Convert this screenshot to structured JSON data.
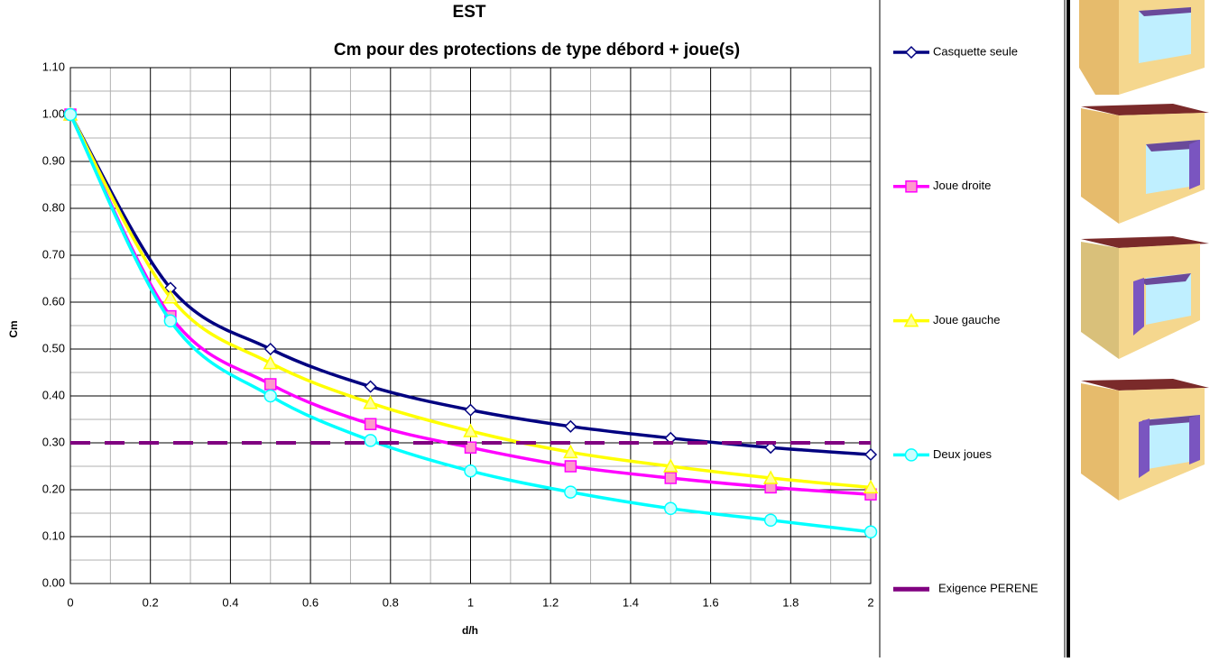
{
  "chart_data": {
    "type": "line",
    "title": "EST",
    "subtitle": "Cm pour des protections de type débord + joue(s)",
    "x_label": "d/h",
    "y_label": "Cm",
    "x": [
      0,
      0.25,
      0.5,
      0.75,
      1,
      1.25,
      1.5,
      1.75,
      2
    ],
    "series": [
      {
        "name": "Casquette seule",
        "color": "#000080",
        "marker": "diamond",
        "marker_fill": "#ffffff",
        "values": [
          1.0,
          0.63,
          0.5,
          0.42,
          0.37,
          0.335,
          0.31,
          0.29,
          0.275
        ]
      },
      {
        "name": "Joue droite",
        "color": "#ff00ff",
        "marker": "square",
        "marker_fill": "#ff99cc",
        "values": [
          1.0,
          0.57,
          0.425,
          0.34,
          0.29,
          0.25,
          0.225,
          0.205,
          0.19
        ]
      },
      {
        "name": "Joue gauche",
        "color": "#ffff00",
        "marker": "triangle",
        "marker_fill": "#ffff99",
        "values": [
          1.0,
          0.61,
          0.47,
          0.385,
          0.325,
          0.28,
          0.25,
          0.225,
          0.205
        ]
      },
      {
        "name": "Deux joues",
        "color": "#00ffff",
        "marker": "circle",
        "marker_fill": "#ccffff",
        "values": [
          1.0,
          0.56,
          0.4,
          0.305,
          0.24,
          0.195,
          0.16,
          0.135,
          0.11
        ]
      },
      {
        "name": "Exigence PERENE",
        "color": "#800080",
        "marker": "none",
        "dashed": true,
        "values": [
          0.3,
          0.3,
          0.3,
          0.3,
          0.3,
          0.3,
          0.3,
          0.3,
          0.3
        ]
      }
    ],
    "xlim": [
      0,
      2
    ],
    "ylim": [
      0,
      1.1
    ],
    "xticks": [
      0,
      0.2,
      0.4,
      0.6,
      0.8,
      1,
      1.2,
      1.4,
      1.6,
      1.8,
      2
    ],
    "yticks": [
      {
        "value": 0,
        "label": "0.00"
      },
      {
        "value": 0.1,
        "label": "0.10"
      },
      {
        "value": 0.2,
        "label": "0.20"
      },
      {
        "value": 0.3,
        "label": "0.30"
      },
      {
        "value": 0.4,
        "label": "0.40"
      },
      {
        "value": 0.5,
        "label": "0.50"
      },
      {
        "value": 0.6,
        "label": "0.60"
      },
      {
        "value": 0.7,
        "label": "0.70"
      },
      {
        "value": 0.8,
        "label": "0.80"
      },
      {
        "value": 0.9,
        "label": "0.90"
      },
      {
        "value": 1,
        "label": "1.00"
      },
      {
        "value": 1.1,
        "label": "1.10"
      }
    ],
    "x_minor_ticks": [
      0.1,
      0.3,
      0.5,
      0.7,
      0.9,
      1.1,
      1.3,
      1.5,
      1.7,
      1.9
    ],
    "y_minor_ticks": [
      0.05,
      0.15,
      0.25,
      0.35,
      0.45,
      0.55,
      0.65,
      0.75,
      0.85,
      0.95,
      1.05
    ],
    "grid": true,
    "smooth": true,
    "legend": "right"
  }
}
